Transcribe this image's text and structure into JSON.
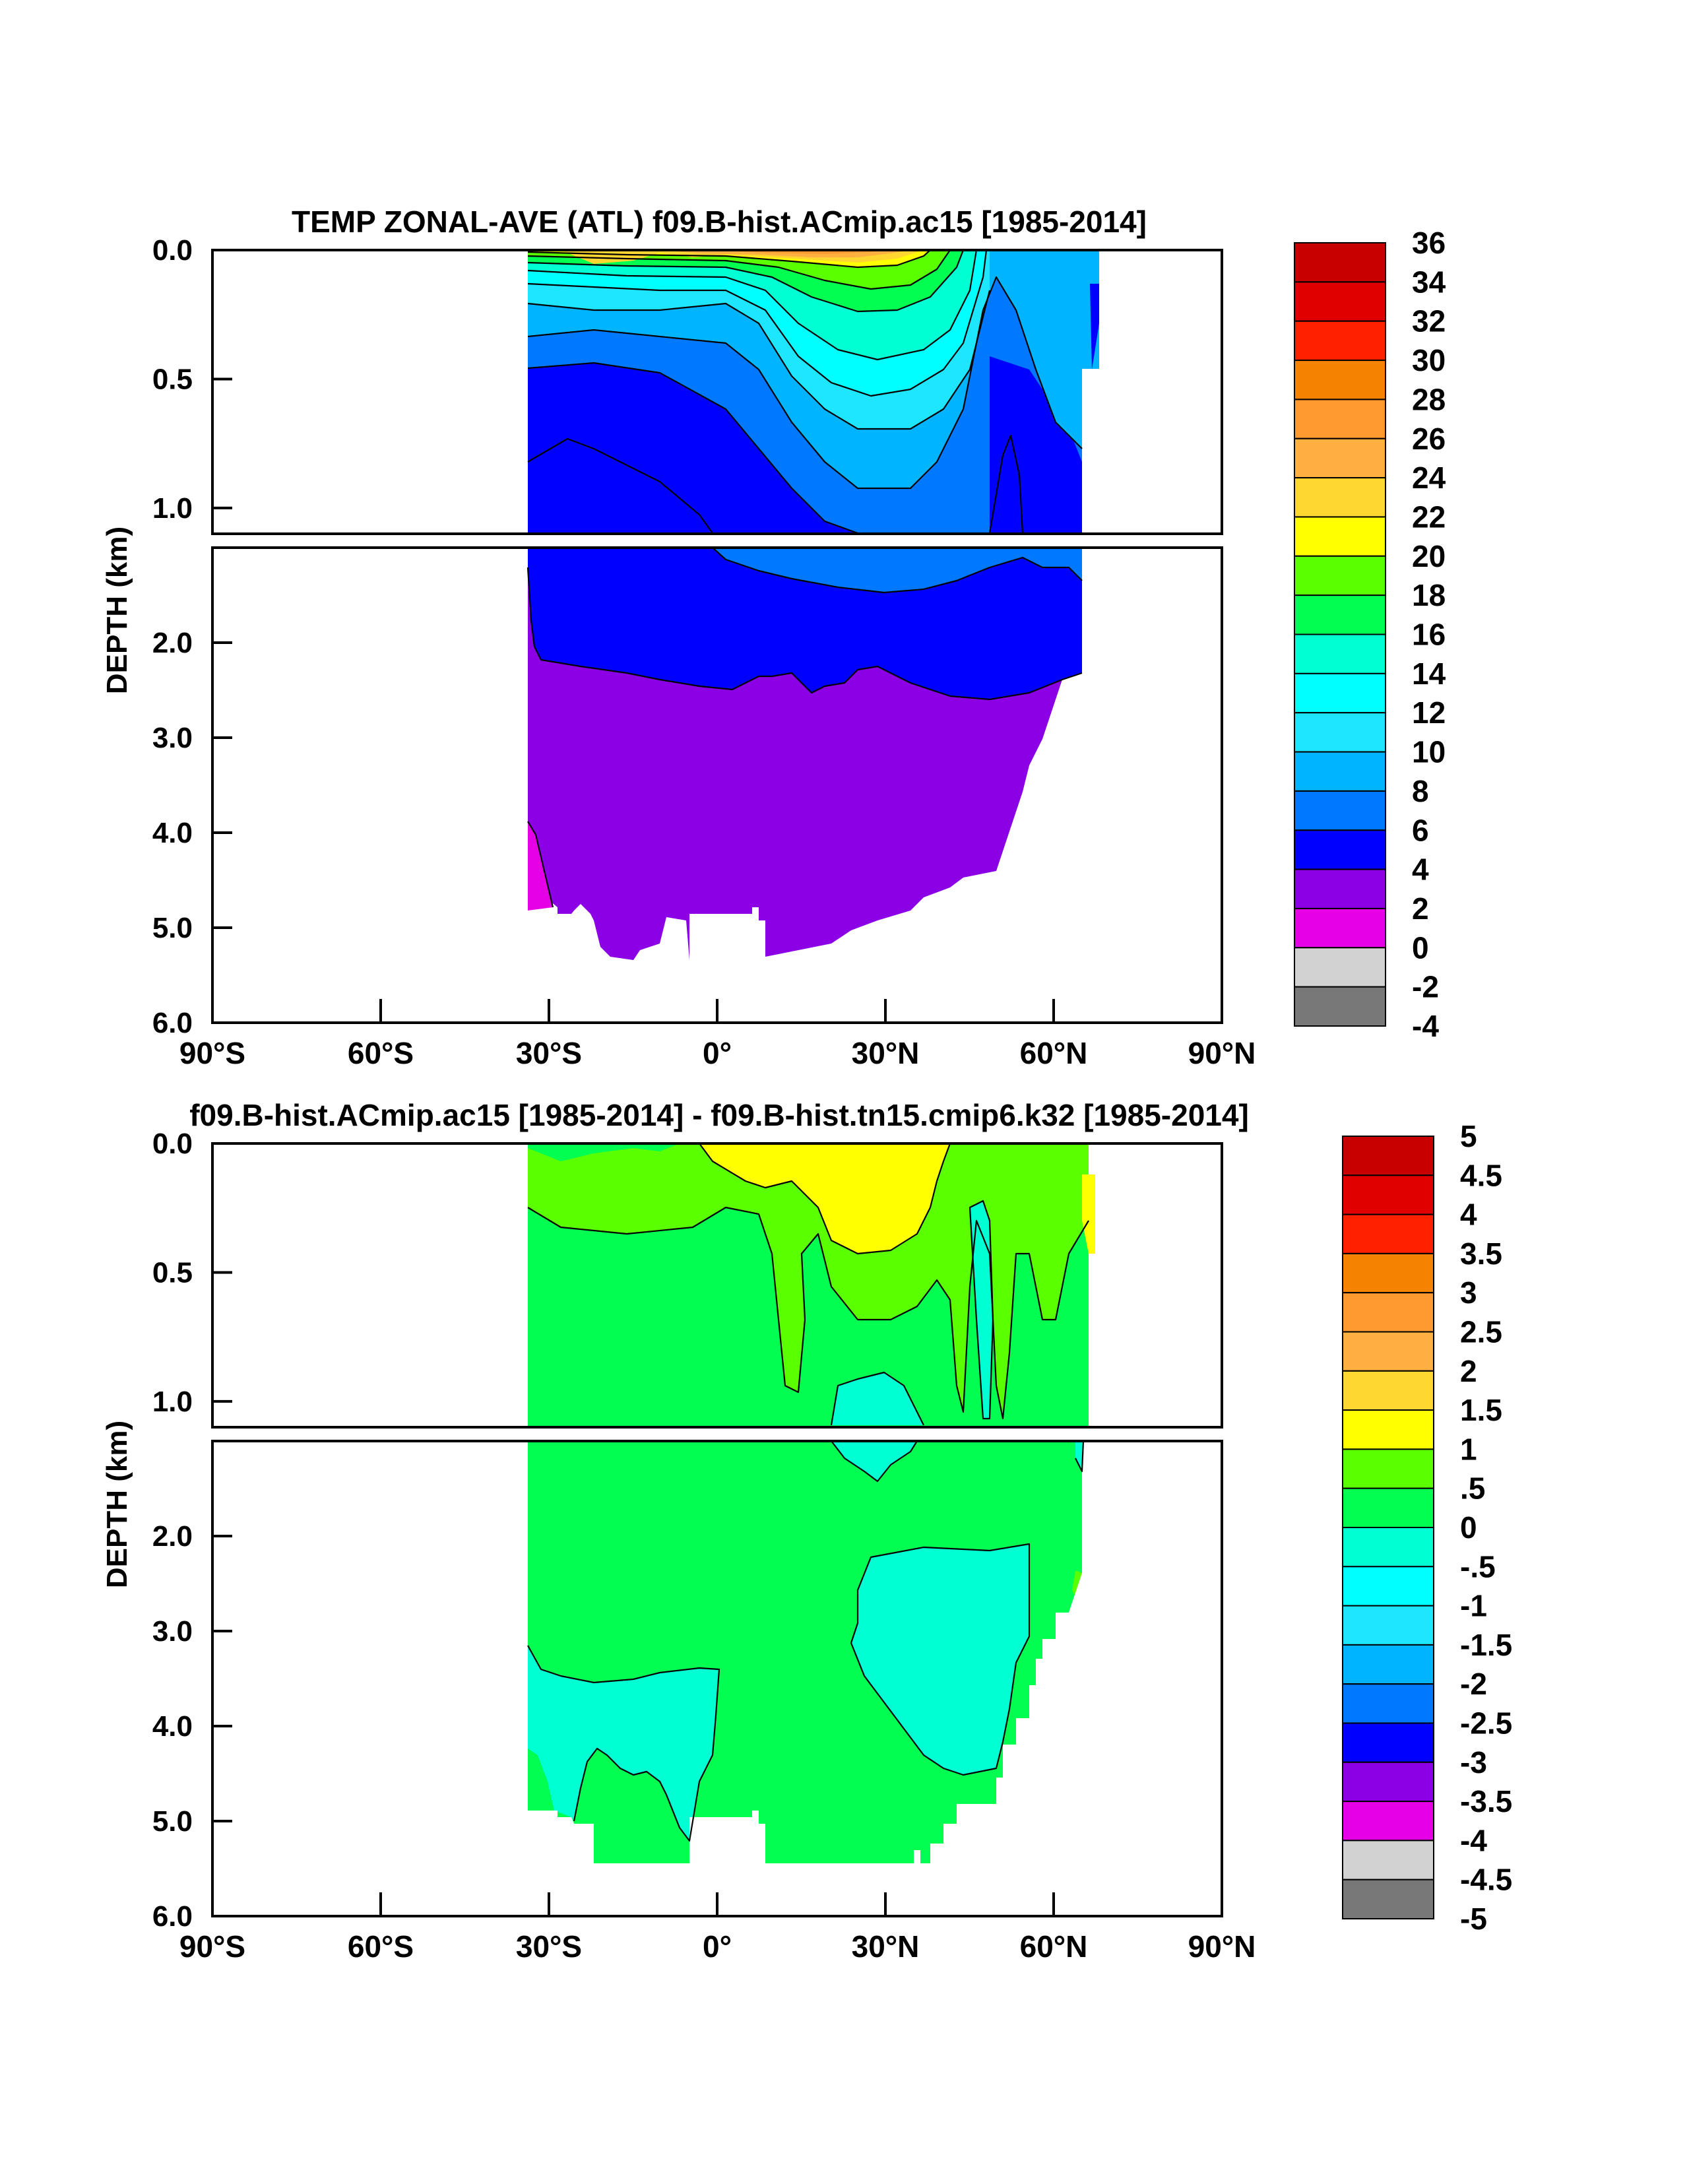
{
  "chart_data": [
    {
      "type": "contour",
      "title": "TEMP ZONAL-AVE (ATL) f09.B-hist.ACmip.ac15 [1985-2014]",
      "ylabel": "DEPTH (km)",
      "xlabel": "",
      "x_ticks": [
        "90°S",
        "60°S",
        "30°S",
        "0°",
        "30°N",
        "60°N",
        "90°N"
      ],
      "y_ticks_upper": [
        "0.0",
        "0.5",
        "1.0"
      ],
      "y_ticks_lower": [
        "2.0",
        "3.0",
        "4.0",
        "5.0",
        "6.0"
      ],
      "xlim": [
        -90,
        90
      ],
      "ylim_upper_km": [
        0,
        1.1
      ],
      "ylim_lower_km": [
        1.0,
        6.0
      ],
      "colorbar_labels": [
        "36",
        "34",
        "32",
        "30",
        "28",
        "26",
        "24",
        "22",
        "20",
        "18",
        "16",
        "14",
        "12",
        "10",
        "8",
        "6",
        "4",
        "2",
        "0",
        "-2",
        "-4"
      ],
      "colorbar_colors": [
        "#c80000",
        "#e00000",
        "#ff2000",
        "#f58200",
        "#ff9a30",
        "#ffb040",
        "#ffd730",
        "#ffff00",
        "#5aff00",
        "#00ff50",
        "#00ffd2",
        "#00ffff",
        "#1ee6ff",
        "#00b4ff",
        "#0078ff",
        "#0000ff",
        "#8c00e6",
        "#e600e6",
        "#d2d2d2",
        "#787878"
      ]
    },
    {
      "type": "contour",
      "title": "f09.B-hist.ACmip.ac15 [1985-2014] - f09.B-hist.tn15.cmip6.k32 [1985-2014]",
      "ylabel": "DEPTH (km)",
      "xlabel": "",
      "x_ticks": [
        "90°S",
        "60°S",
        "30°S",
        "0°",
        "30°N",
        "60°N",
        "90°N"
      ],
      "y_ticks_upper": [
        "0.0",
        "0.5",
        "1.0"
      ],
      "y_ticks_lower": [
        "2.0",
        "3.0",
        "4.0",
        "5.0",
        "6.0"
      ],
      "xlim": [
        -90,
        90
      ],
      "ylim_upper_km": [
        0,
        1.1
      ],
      "ylim_lower_km": [
        1.0,
        6.0
      ],
      "colorbar_labels": [
        "5",
        "4.5",
        "4",
        "3.5",
        "3",
        "2.5",
        "2",
        "1.5",
        "1",
        ".5",
        "0",
        "-.5",
        "-1",
        "-1.5",
        "-2",
        "-2.5",
        "-3",
        "-3.5",
        "-4",
        "-4.5",
        "-5"
      ],
      "colorbar_colors": [
        "#c80000",
        "#e00000",
        "#ff2000",
        "#f58200",
        "#ff9a30",
        "#ffb040",
        "#ffd730",
        "#ffff00",
        "#5aff00",
        "#00ff50",
        "#00ffd2",
        "#00ffff",
        "#1ee6ff",
        "#00b4ff",
        "#0078ff",
        "#0000ff",
        "#8c00e6",
        "#e600e6",
        "#d2d2d2",
        "#787878"
      ]
    }
  ]
}
